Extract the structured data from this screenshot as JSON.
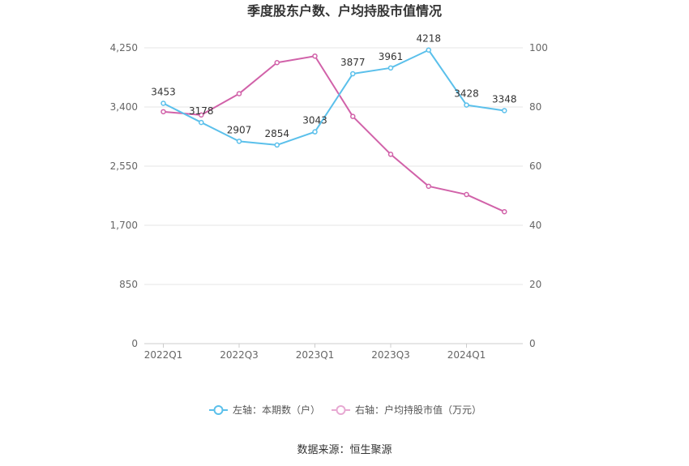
{
  "chart_data": {
    "type": "line",
    "title": "季度股东户数、户均持股市值情况",
    "categories": [
      "2022Q1",
      "2022Q2",
      "2022Q3",
      "2022Q4",
      "2023Q1",
      "2023Q2",
      "2023Q3",
      "2023Q4",
      "2024Q1",
      "2024Q2"
    ],
    "x_tick_labels": [
      "2022Q1",
      "2022Q3",
      "2023Q1",
      "2023Q3",
      "2024Q1"
    ],
    "left_axis": {
      "ylim": [
        0,
        4250
      ],
      "ticks": [
        0,
        850,
        1700,
        2550,
        3400,
        4250
      ],
      "tick_labels": [
        "0",
        "850",
        "1,700",
        "2,550",
        "3,400",
        "4,250"
      ]
    },
    "right_axis": {
      "ylim": [
        0,
        100
      ],
      "ticks": [
        0,
        20,
        40,
        60,
        80,
        100
      ],
      "tick_labels": [
        "0",
        "20",
        "40",
        "60",
        "80",
        "100"
      ]
    },
    "series": [
      {
        "name": "左轴：本期数（户）",
        "axis": "left",
        "color": "#5bc0eb",
        "values": [
          3453,
          3178,
          2907,
          2854,
          3043,
          3877,
          3961,
          4218,
          3428,
          3348
        ],
        "labels": [
          "3453",
          "3178",
          "2907",
          "2854",
          "3043",
          "3877",
          "3961",
          "4218",
          "3428",
          "3348"
        ]
      },
      {
        "name": "右轴：户均持股市值（万元）",
        "axis": "right",
        "color": "#d162a9",
        "values": [
          78.4,
          77.3,
          84.5,
          95.0,
          97.2,
          76.8,
          64.0,
          53.2,
          50.4,
          44.6
        ]
      }
    ],
    "legend_position": "bottom",
    "grid": true
  },
  "source": "数据来源：恒生聚源"
}
